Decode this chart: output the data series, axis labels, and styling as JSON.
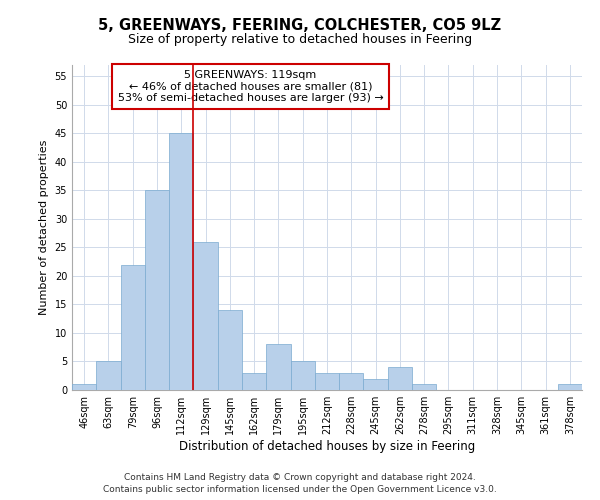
{
  "title": "5, GREENWAYS, FEERING, COLCHESTER, CO5 9LZ",
  "subtitle": "Size of property relative to detached houses in Feering",
  "xlabel": "Distribution of detached houses by size in Feering",
  "ylabel": "Number of detached properties",
  "bar_values": [
    1,
    5,
    22,
    35,
    45,
    26,
    14,
    3,
    8,
    5,
    3,
    3,
    2,
    4,
    1,
    0,
    0,
    0,
    0,
    0,
    1
  ],
  "x_labels": [
    "46sqm",
    "63sqm",
    "79sqm",
    "96sqm",
    "112sqm",
    "129sqm",
    "145sqm",
    "162sqm",
    "179sqm",
    "195sqm",
    "212sqm",
    "228sqm",
    "245sqm",
    "262sqm",
    "278sqm",
    "295sqm",
    "311sqm",
    "328sqm",
    "345sqm",
    "361sqm",
    "378sqm"
  ],
  "bar_color": "#b8d0ea",
  "bar_edge_color": "#7aaad0",
  "grid_color": "#d0daea",
  "annotation_text": "5 GREENWAYS: 119sqm\n← 46% of detached houses are smaller (81)\n53% of semi-detached houses are larger (93) →",
  "annotation_box_color": "#ffffff",
  "annotation_box_edge": "#cc0000",
  "footer_line1": "Contains HM Land Registry data © Crown copyright and database right 2024.",
  "footer_line2": "Contains public sector information licensed under the Open Government Licence v3.0.",
  "ylim": [
    0,
    57
  ],
  "yticks": [
    0,
    5,
    10,
    15,
    20,
    25,
    30,
    35,
    40,
    45,
    50,
    55
  ],
  "title_fontsize": 10.5,
  "subtitle_fontsize": 9,
  "tick_fontsize": 7,
  "ylabel_fontsize": 8,
  "xlabel_fontsize": 8.5,
  "annotation_fontsize": 8,
  "footer_fontsize": 6.5,
  "red_line_color": "#cc0000",
  "red_line_x": 4.5
}
